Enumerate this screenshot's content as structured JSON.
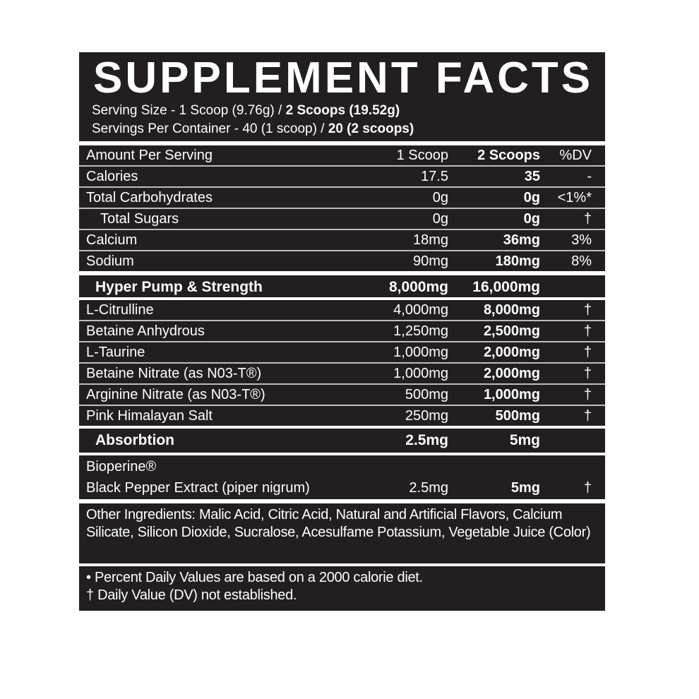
{
  "title": "SUPPLEMENT FACTS",
  "serving_size": {
    "label": "Serving Size - 1 Scoop (9.76g) / ",
    "bold": "2 Scoops (19.52g)"
  },
  "servings_per_container": {
    "label": "Servings Per Container - 40 (1 scoop) / ",
    "bold": "20 (2 scoops)"
  },
  "header_row": {
    "label": "Amount Per Serving",
    "c1": "1 Scoop",
    "c2": "2 Scoops",
    "c3": "%DV"
  },
  "nutrients": [
    {
      "label": "Calories",
      "c1": "17.5",
      "c2": "35",
      "c3": "-"
    },
    {
      "label": "Total Carbohydrates",
      "c1": "0g",
      "c2": "0g",
      "c3": "<1%*"
    },
    {
      "label": "Total Sugars",
      "c1": "0g",
      "c2": "0g",
      "c3": "†"
    },
    {
      "label": "Calcium",
      "c1": "18mg",
      "c2": "36mg",
      "c3": "3%"
    },
    {
      "label": "Sodium",
      "c1": "90mg",
      "c2": "180mg",
      "c3": "8%"
    }
  ],
  "blend1": {
    "label": "Hyper Pump & Strength",
    "c1": "8,000mg",
    "c2": "16,000mg"
  },
  "blend1_items": [
    {
      "label": "L-Citrulline",
      "c1": "4,000mg",
      "c2": "8,000mg",
      "c3": "†"
    },
    {
      "label": "Betaine Anhydrous",
      "c1": "1,250mg",
      "c2": "2,500mg",
      "c3": "†"
    },
    {
      "label": "L-Taurine",
      "c1": "1,000mg",
      "c2": "2,000mg",
      "c3": "†"
    },
    {
      "label": "Betaine Nitrate (as N03-T®)",
      "c1": "1,000mg",
      "c2": "2,000mg",
      "c3": "†"
    },
    {
      "label": "Arginine Nitrate (as N03-T®)",
      "c1": "500mg",
      "c2": "1,000mg",
      "c3": "†"
    },
    {
      "label": "Pink Himalayan Salt",
      "c1": "250mg",
      "c2": "500mg",
      "c3": "†"
    }
  ],
  "blend2": {
    "label": "Absorbtion",
    "c1": "2.5mg",
    "c2": "5mg"
  },
  "blend2_item": {
    "line1": "Bioperine®",
    "label": "Black Pepper Extract (piper nigrum)",
    "c1": "2.5mg",
    "c2": "5mg",
    "c3": "†"
  },
  "other_ingredients": "Other Ingredients: Malic Acid, Citric Acid, Natural and Artificial Flavors, Calcium Silicate, Silicon Dioxide, Sucralose, Acesulfame Potassium, Vegetable Juice (Color)",
  "footnotes": [
    "• Percent Daily Values are based on a 2000 calorie diet.",
    "† Daily Value (DV) not established."
  ]
}
